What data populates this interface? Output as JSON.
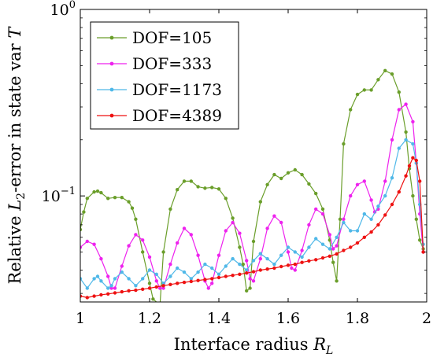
{
  "chart_data": {
    "type": "line",
    "xlabel": "Interface radius R_L",
    "ylabel": "Relative L_2-error in state var T",
    "xlim": [
      1,
      2
    ],
    "ylim": [
      0.027,
      1
    ],
    "log_y": true,
    "grid": false,
    "legend_position": "top-left",
    "x_ticks": [
      1,
      1.2,
      1.4,
      1.6,
      1.8,
      2
    ],
    "x_tick_labels": [
      "1",
      "1.2",
      "1.4",
      "1.6",
      "1.8",
      "2"
    ],
    "y_ticks": [
      0.1,
      1
    ],
    "y_tick_labels": [
      {
        "base": "10",
        "exp": "−1"
      },
      {
        "base": "10",
        "exp": "0"
      }
    ],
    "series": [
      {
        "name": "DOF=105",
        "color": "#6a9e2a",
        "x": [
          1.0,
          1.01,
          1.02,
          1.04,
          1.05,
          1.06,
          1.08,
          1.1,
          1.12,
          1.14,
          1.15,
          1.16,
          1.18,
          1.2,
          1.21,
          1.23,
          1.24,
          1.26,
          1.28,
          1.3,
          1.32,
          1.34,
          1.36,
          1.38,
          1.4,
          1.42,
          1.44,
          1.46,
          1.47,
          1.48,
          1.49,
          1.5,
          1.52,
          1.54,
          1.56,
          1.58,
          1.6,
          1.62,
          1.64,
          1.66,
          1.68,
          1.7,
          1.72,
          1.73,
          1.74,
          1.75,
          1.76,
          1.78,
          1.8,
          1.82,
          1.84,
          1.86,
          1.88,
          1.9,
          1.92,
          1.94,
          1.95,
          1.96,
          1.97,
          1.98,
          1.99
        ],
        "y": [
          0.066,
          0.082,
          0.097,
          0.105,
          0.106,
          0.104,
          0.097,
          0.098,
          0.098,
          0.093,
          0.086,
          0.075,
          0.05,
          0.034,
          0.028,
          0.026,
          0.05,
          0.085,
          0.108,
          0.12,
          0.12,
          0.112,
          0.11,
          0.111,
          0.109,
          0.097,
          0.076,
          0.053,
          0.043,
          0.031,
          0.032,
          0.057,
          0.093,
          0.115,
          0.13,
          0.124,
          0.133,
          0.138,
          0.13,
          0.116,
          0.103,
          0.085,
          0.058,
          0.044,
          0.035,
          0.075,
          0.19,
          0.29,
          0.35,
          0.37,
          0.37,
          0.42,
          0.47,
          0.45,
          0.36,
          0.22,
          0.14,
          0.1,
          0.075,
          0.058,
          0.052
        ]
      },
      {
        "name": "DOF=333",
        "color": "#ee22ee",
        "x": [
          1.0,
          1.02,
          1.04,
          1.06,
          1.08,
          1.09,
          1.1,
          1.12,
          1.14,
          1.16,
          1.18,
          1.2,
          1.22,
          1.23,
          1.24,
          1.26,
          1.28,
          1.3,
          1.32,
          1.34,
          1.36,
          1.37,
          1.38,
          1.4,
          1.42,
          1.44,
          1.46,
          1.48,
          1.49,
          1.5,
          1.52,
          1.54,
          1.56,
          1.58,
          1.6,
          1.61,
          1.62,
          1.64,
          1.66,
          1.68,
          1.7,
          1.72,
          1.73,
          1.74,
          1.76,
          1.78,
          1.8,
          1.82,
          1.84,
          1.85,
          1.86,
          1.88,
          1.9,
          1.92,
          1.94,
          1.96,
          1.97,
          1.98,
          1.99
        ],
        "y": [
          0.053,
          0.057,
          0.055,
          0.046,
          0.037,
          0.032,
          0.032,
          0.042,
          0.054,
          0.062,
          0.058,
          0.047,
          0.035,
          0.032,
          0.032,
          0.043,
          0.056,
          0.067,
          0.062,
          0.048,
          0.035,
          0.032,
          0.034,
          0.048,
          0.065,
          0.072,
          0.063,
          0.045,
          0.036,
          0.035,
          0.046,
          0.067,
          0.078,
          0.072,
          0.05,
          0.041,
          0.04,
          0.051,
          0.07,
          0.085,
          0.08,
          0.062,
          0.052,
          0.054,
          0.075,
          0.1,
          0.115,
          0.12,
          0.095,
          0.082,
          0.085,
          0.12,
          0.2,
          0.29,
          0.31,
          0.25,
          0.15,
          0.08,
          0.05
        ]
      },
      {
        "name": "DOF=1173",
        "color": "#4fb8e8",
        "x": [
          1.0,
          1.02,
          1.04,
          1.05,
          1.06,
          1.08,
          1.09,
          1.1,
          1.12,
          1.14,
          1.16,
          1.18,
          1.2,
          1.22,
          1.24,
          1.26,
          1.28,
          1.3,
          1.32,
          1.34,
          1.36,
          1.38,
          1.4,
          1.42,
          1.44,
          1.46,
          1.48,
          1.5,
          1.52,
          1.54,
          1.56,
          1.58,
          1.6,
          1.62,
          1.64,
          1.66,
          1.68,
          1.7,
          1.72,
          1.74,
          1.76,
          1.78,
          1.8,
          1.82,
          1.84,
          1.86,
          1.88,
          1.9,
          1.92,
          1.94,
          1.96,
          1.97,
          1.98,
          1.99
        ],
        "y": [
          0.036,
          0.032,
          0.036,
          0.037,
          0.035,
          0.032,
          0.033,
          0.036,
          0.039,
          0.036,
          0.033,
          0.036,
          0.04,
          0.038,
          0.034,
          0.037,
          0.041,
          0.039,
          0.036,
          0.039,
          0.043,
          0.041,
          0.038,
          0.042,
          0.046,
          0.043,
          0.04,
          0.045,
          0.049,
          0.046,
          0.043,
          0.048,
          0.053,
          0.05,
          0.047,
          0.053,
          0.059,
          0.055,
          0.052,
          0.06,
          0.072,
          0.065,
          0.065,
          0.08,
          0.075,
          0.088,
          0.1,
          0.125,
          0.18,
          0.2,
          0.19,
          0.15,
          0.09,
          0.055
        ]
      },
      {
        "name": "DOF=4389",
        "color": "#ee1111",
        "x": [
          1.0,
          1.02,
          1.04,
          1.06,
          1.08,
          1.1,
          1.12,
          1.14,
          1.16,
          1.18,
          1.2,
          1.22,
          1.24,
          1.26,
          1.28,
          1.3,
          1.32,
          1.34,
          1.36,
          1.38,
          1.4,
          1.42,
          1.44,
          1.46,
          1.48,
          1.5,
          1.52,
          1.54,
          1.56,
          1.58,
          1.6,
          1.62,
          1.64,
          1.66,
          1.68,
          1.7,
          1.72,
          1.74,
          1.76,
          1.78,
          1.8,
          1.82,
          1.84,
          1.86,
          1.88,
          1.9,
          1.92,
          1.94,
          1.95,
          1.96,
          1.97,
          1.98,
          1.99
        ],
        "y": [
          0.029,
          0.0285,
          0.029,
          0.0295,
          0.0298,
          0.0302,
          0.0306,
          0.031,
          0.0312,
          0.0316,
          0.032,
          0.0325,
          0.033,
          0.0335,
          0.034,
          0.0344,
          0.0348,
          0.0352,
          0.0356,
          0.036,
          0.0365,
          0.037,
          0.0375,
          0.038,
          0.0386,
          0.0392,
          0.04,
          0.0405,
          0.041,
          0.0418,
          0.0425,
          0.043,
          0.044,
          0.0448,
          0.0455,
          0.0465,
          0.0475,
          0.0488,
          0.051,
          0.053,
          0.056,
          0.06,
          0.064,
          0.07,
          0.079,
          0.09,
          0.105,
          0.128,
          0.145,
          0.16,
          0.155,
          0.12,
          0.05
        ]
      }
    ]
  }
}
